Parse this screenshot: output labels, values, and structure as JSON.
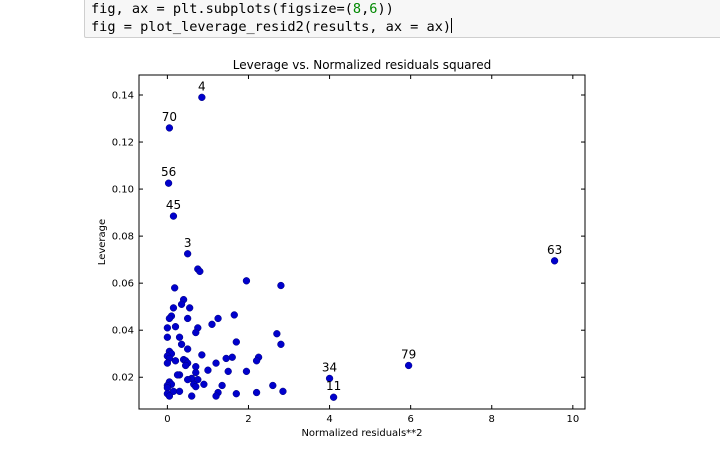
{
  "code": {
    "line1": {
      "a": "fig, ax = plt.subplots(figsize=(",
      "n1": "8",
      "b": ",",
      "n2": "6",
      "c": "))"
    },
    "line2": "fig = plot_leverage_resid2(results, ax = ax)"
  },
  "chart_data": {
    "type": "scatter",
    "title": "Leverage vs. Normalized residuals squared",
    "xlabel": "Normalized residuals**2",
    "ylabel": "Leverage",
    "xlim": [
      -0.7,
      10.3
    ],
    "ylim": [
      0.0065,
      0.1485
    ],
    "xticks": [
      0,
      2,
      4,
      6,
      8,
      10
    ],
    "yticks": [
      0.02,
      0.04,
      0.06,
      0.08,
      0.1,
      0.12,
      0.14
    ],
    "ytick_labels": [
      "0.02",
      "0.04",
      "0.06",
      "0.08",
      "0.10",
      "0.12",
      "0.14"
    ],
    "grid": false,
    "marker_color": "#0000cc",
    "points": [
      [
        0.85,
        0.139
      ],
      [
        0.05,
        0.126
      ],
      [
        0.03,
        0.1025
      ],
      [
        0.15,
        0.0885
      ],
      [
        0.5,
        0.0725
      ],
      [
        9.55,
        0.0695
      ],
      [
        5.95,
        0.025
      ],
      [
        4.0,
        0.0195
      ],
      [
        4.1,
        0.0115
      ],
      [
        0.75,
        0.066
      ],
      [
        0.8,
        0.065
      ],
      [
        1.95,
        0.061
      ],
      [
        2.8,
        0.059
      ],
      [
        0.18,
        0.058
      ],
      [
        0.4,
        0.053
      ],
      [
        0.35,
        0.051
      ],
      [
        0.55,
        0.0495
      ],
      [
        0.15,
        0.0495
      ],
      [
        0.1,
        0.046
      ],
      [
        0.05,
        0.045
      ],
      [
        0.5,
        0.045
      ],
      [
        1.25,
        0.045
      ],
      [
        1.65,
        0.0465
      ],
      [
        1.1,
        0.0425
      ],
      [
        0.0,
        0.041
      ],
      [
        0.2,
        0.0415
      ],
      [
        0.75,
        0.041
      ],
      [
        0.7,
        0.039
      ],
      [
        2.7,
        0.0385
      ],
      [
        0.3,
        0.037
      ],
      [
        0.0,
        0.037
      ],
      [
        1.7,
        0.035
      ],
      [
        2.8,
        0.034
      ],
      [
        0.35,
        0.034
      ],
      [
        0.5,
        0.032
      ],
      [
        0.05,
        0.031
      ],
      [
        0.1,
        0.03
      ],
      [
        0.0,
        0.029
      ],
      [
        0.85,
        0.0295
      ],
      [
        2.25,
        0.0285
      ],
      [
        1.6,
        0.0285
      ],
      [
        1.45,
        0.028
      ],
      [
        2.2,
        0.027
      ],
      [
        0.05,
        0.028
      ],
      [
        0.2,
        0.027
      ],
      [
        0.4,
        0.0275
      ],
      [
        0.45,
        0.027
      ],
      [
        0.0,
        0.026
      ],
      [
        0.5,
        0.026
      ],
      [
        0.45,
        0.025
      ],
      [
        1.2,
        0.026
      ],
      [
        0.7,
        0.0245
      ],
      [
        1.0,
        0.023
      ],
      [
        1.95,
        0.0225
      ],
      [
        0.7,
        0.022
      ],
      [
        1.5,
        0.0225
      ],
      [
        0.3,
        0.021
      ],
      [
        0.25,
        0.021
      ],
      [
        0.6,
        0.0195
      ],
      [
        0.5,
        0.019
      ],
      [
        0.75,
        0.019
      ],
      [
        0.05,
        0.018
      ],
      [
        0.1,
        0.017
      ],
      [
        0.65,
        0.017
      ],
      [
        0.9,
        0.017
      ],
      [
        0.0,
        0.0165
      ],
      [
        1.35,
        0.0165
      ],
      [
        2.6,
        0.0165
      ],
      [
        0.7,
        0.016
      ],
      [
        0.0,
        0.0155
      ],
      [
        0.15,
        0.014
      ],
      [
        0.3,
        0.014
      ],
      [
        0.0,
        0.013
      ],
      [
        1.25,
        0.0135
      ],
      [
        2.85,
        0.014
      ],
      [
        2.2,
        0.0135
      ],
      [
        1.7,
        0.013
      ],
      [
        1.2,
        0.012
      ],
      [
        0.6,
        0.012
      ],
      [
        0.05,
        0.012
      ]
    ],
    "annotations": [
      {
        "text": "4",
        "x": 0.85,
        "y": 0.139
      },
      {
        "text": "70",
        "x": 0.05,
        "y": 0.126
      },
      {
        "text": "56",
        "x": 0.03,
        "y": 0.1025
      },
      {
        "text": "45",
        "x": 0.15,
        "y": 0.0885
      },
      {
        "text": "3",
        "x": 0.5,
        "y": 0.0725
      },
      {
        "text": "63",
        "x": 9.55,
        "y": 0.0695
      },
      {
        "text": "79",
        "x": 5.95,
        "y": 0.025
      },
      {
        "text": "34",
        "x": 4.0,
        "y": 0.0195
      },
      {
        "text": "11",
        "x": 4.1,
        "y": 0.0115
      }
    ]
  }
}
